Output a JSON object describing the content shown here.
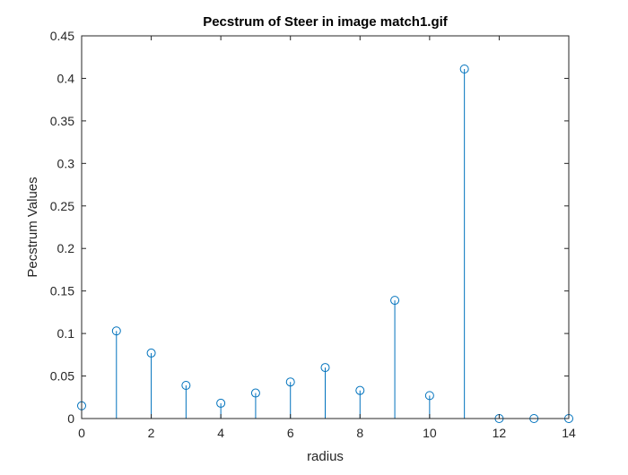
{
  "chart_data": {
    "type": "stem",
    "title": "Pecstrum of Steer in image match1.gif",
    "xlabel": "radius",
    "ylabel": "Pecstrum Values",
    "xlim": [
      0,
      14
    ],
    "ylim": [
      0,
      0.45
    ],
    "xticks": [
      "0",
      "2",
      "4",
      "6",
      "8",
      "10",
      "12",
      "14"
    ],
    "yticks": [
      "0",
      "0.05",
      "0.1",
      "0.15",
      "0.2",
      "0.25",
      "0.3",
      "0.35",
      "0.4",
      "0.45"
    ],
    "grid": false,
    "box": true,
    "marker": "open-circle",
    "color": "#0072BD",
    "x": [
      0,
      1,
      2,
      3,
      4,
      5,
      6,
      7,
      8,
      9,
      10,
      11,
      12,
      13,
      14
    ],
    "values": [
      0.015,
      0.103,
      0.077,
      0.039,
      0.018,
      0.03,
      0.043,
      0.06,
      0.033,
      0.139,
      0.027,
      0.411,
      0.0,
      0.0,
      0.0
    ]
  }
}
